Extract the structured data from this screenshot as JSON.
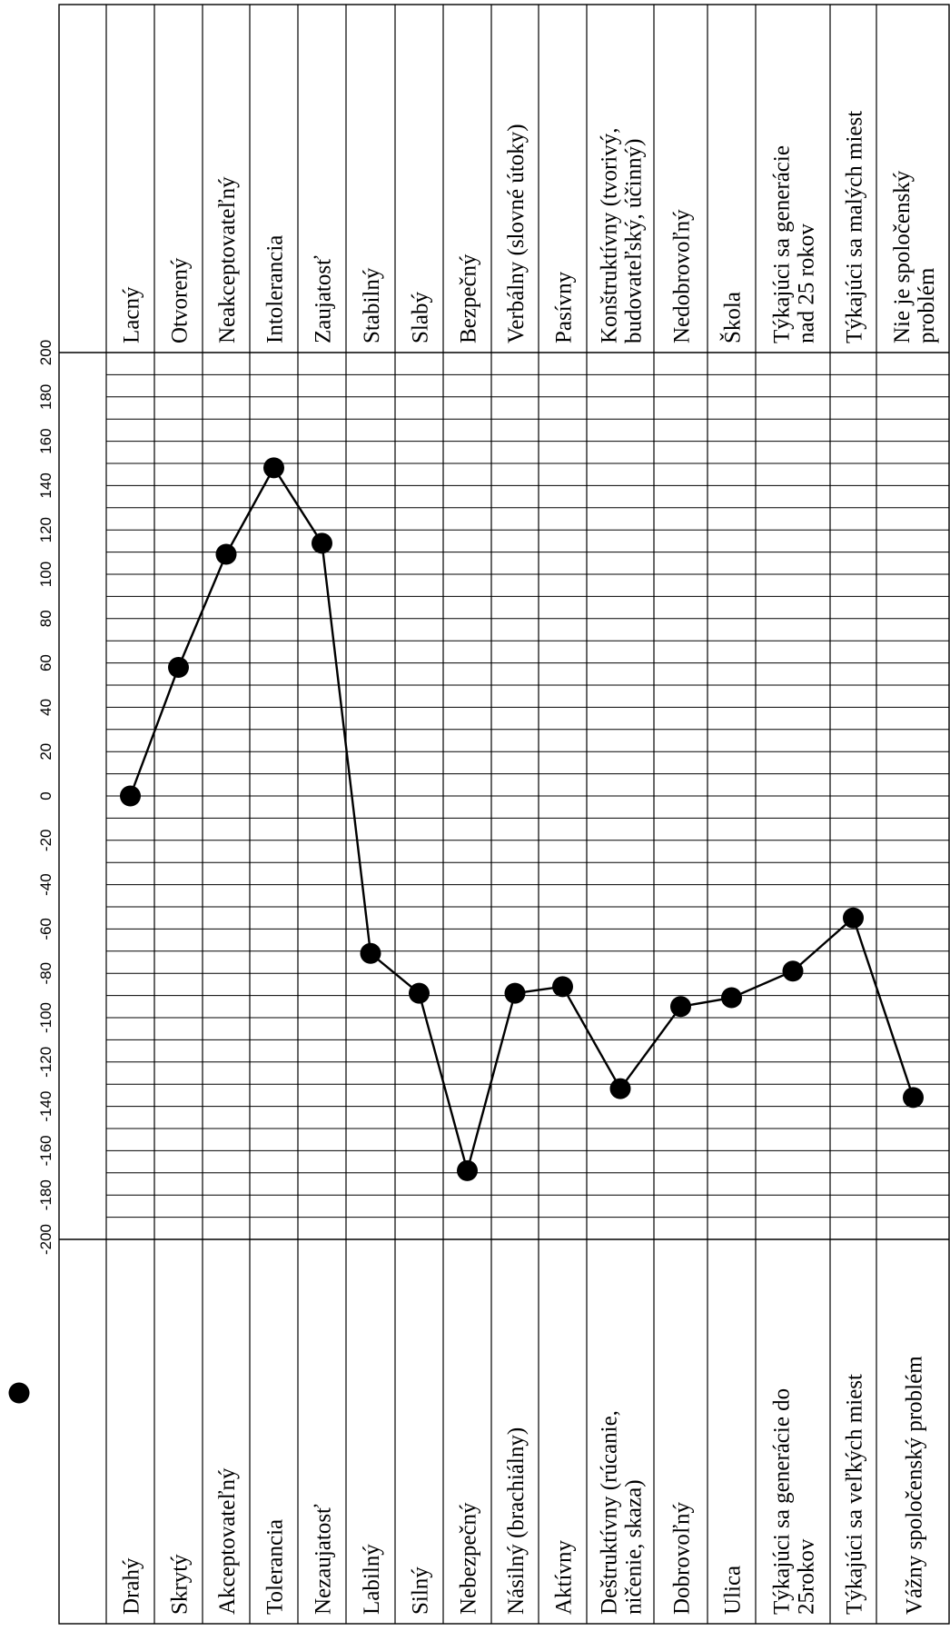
{
  "chart_data": {
    "type": "line",
    "title": "",
    "xlabel": "",
    "ylabel": "",
    "xlim": [
      -200,
      200
    ],
    "x_ticks": [
      -200,
      -180,
      -160,
      -140,
      -120,
      -100,
      -80,
      -60,
      -40,
      -20,
      0,
      20,
      40,
      60,
      80,
      100,
      120,
      140,
      160,
      180,
      200
    ],
    "grid": true,
    "legend": "none",
    "marker_color": "#000000",
    "line_color": "#000000",
    "rows": [
      {
        "left": [
          "Drahý"
        ],
        "right": [
          "Lacný"
        ],
        "value": 0
      },
      {
        "left": [
          "Skrytý"
        ],
        "right": [
          "Otvorený"
        ],
        "value": 58
      },
      {
        "left": [
          "Akceptovateľný"
        ],
        "right": [
          "Neakceptovateľný"
        ],
        "value": 109
      },
      {
        "left": [
          "Tolerancia"
        ],
        "right": [
          "Intolerancia"
        ],
        "value": 148
      },
      {
        "left": [
          "Nezaujatosť"
        ],
        "right": [
          "Zaujatosť"
        ],
        "value": 114
      },
      {
        "left": [
          "Labilný"
        ],
        "right": [
          "Stabilný"
        ],
        "value": -71
      },
      {
        "left": [
          "Silný"
        ],
        "right": [
          "Slabý"
        ],
        "value": -89
      },
      {
        "left": [
          "Nebezpečný"
        ],
        "right": [
          "Bezpečný"
        ],
        "value": -169
      },
      {
        "left": [
          "Násilný (brachiálny)"
        ],
        "right": [
          "Verbálny (slovné útoky)"
        ],
        "value": -89
      },
      {
        "left": [
          "Aktívny"
        ],
        "right": [
          "Pasívny"
        ],
        "value": -86
      },
      {
        "left": [
          "Deštruktívny (rúcanie,",
          "ničenie, skaza)"
        ],
        "right": [
          "Konštruktívny (tvorivý,",
          "budovateľský, účinný)"
        ],
        "value": -132
      },
      {
        "left": [
          "Dobrovoľný"
        ],
        "right": [
          "Nedobrovoľný"
        ],
        "value": -95
      },
      {
        "left": [
          "Ulica"
        ],
        "right": [
          "Škola"
        ],
        "value": -91
      },
      {
        "left": [
          "Týkajúci sa generácie do",
          "25rokov"
        ],
        "right": [
          "Týkajúci sa generácie",
          "nad 25 rokov"
        ],
        "value": -79
      },
      {
        "left": [
          "Týkajúci sa veľkých miest"
        ],
        "right": [
          "Týkajúci sa malých miest"
        ],
        "value": -55
      },
      {
        "left": [
          "Vážny spoločenský problém"
        ],
        "right": [
          "Nie je spoločenský",
          "problém"
        ],
        "value": -136
      }
    ]
  }
}
